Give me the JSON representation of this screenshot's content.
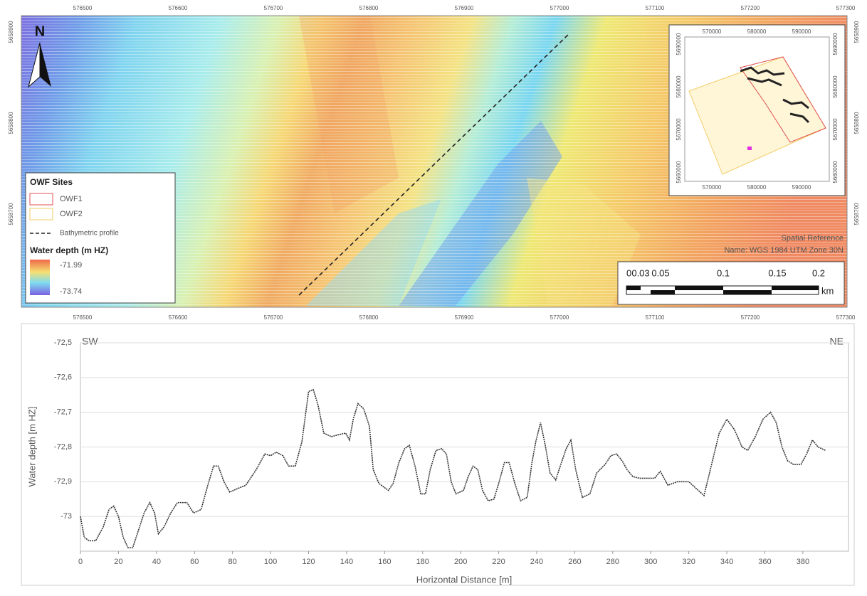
{
  "map": {
    "x_ticks": [
      "576500",
      "576600",
      "576700",
      "576800",
      "576900",
      "577000",
      "577100",
      "577200",
      "577300"
    ],
    "y_ticks": [
      "5658900",
      "5658800",
      "5658700"
    ],
    "north": "N",
    "legend": {
      "title": "OWF Sites",
      "items": [
        "OWF1",
        "OWF2",
        "Bathymetric profile"
      ],
      "depth_title": "Water depth (m HZ)",
      "depth_max": "-71.99",
      "depth_min": "-73.74"
    },
    "spatial_reference": [
      "Spatial Reference",
      "Name: WGS 1984 UTM Zone 30N"
    ],
    "scale_bar": {
      "labels": [
        "0",
        "0.03",
        "0.05",
        "0.1",
        "0.15",
        "0.2"
      ],
      "unit": "km"
    },
    "inset": {
      "x_ticks": [
        "570000",
        "580000",
        "590000"
      ],
      "y_ticks": [
        "5690000",
        "5680000",
        "5670000",
        "5660000"
      ]
    }
  },
  "chart_data": {
    "type": "line",
    "annotations": [
      "SW",
      "NE"
    ],
    "xlabel": "Horizontal Distance [m]",
    "ylabel": "Water depth [m HZ]",
    "color": "#333333",
    "x": [
      0,
      2,
      4.5,
      8,
      12,
      15,
      17.5,
      20,
      22.5,
      25,
      27.5,
      30.5,
      33.5,
      36.5,
      39,
      41,
      44,
      47.5,
      51,
      56,
      59.5,
      63.5,
      67,
      70,
      72.5,
      75.5,
      78.5,
      82.5,
      87,
      92.5,
      97,
      100,
      103,
      106.5,
      109.5,
      113,
      116.5,
      120,
      122.5,
      125,
      128,
      132,
      135.5,
      139.5,
      141.5,
      143.5,
      146,
      149,
      152,
      154,
      157,
      162,
      164.5,
      167.5,
      170.5,
      173,
      176,
      179,
      181.5,
      184,
      187,
      190,
      192.5,
      195,
      197.5,
      201.5,
      204,
      206.5,
      209,
      211.5,
      214.5,
      217.5,
      220,
      223,
      225.5,
      228.5,
      231.5,
      235,
      237.5,
      239.5,
      242,
      244.5,
      247,
      250,
      253,
      255.5,
      258,
      260.5,
      264,
      268,
      271.5,
      276,
      279,
      282,
      285,
      287.5,
      290.5,
      294,
      299,
      302,
      305,
      309,
      314,
      320,
      324,
      328,
      332,
      336,
      340,
      344,
      348,
      351,
      355,
      359,
      363,
      366,
      369,
      372,
      375,
      379,
      382,
      385,
      388,
      392
    ],
    "values": [
      -73.0,
      -73.06,
      -73.07,
      -73.07,
      -73.03,
      -72.98,
      -72.97,
      -73.0,
      -73.06,
      -73.09,
      -73.09,
      -73.04,
      -72.99,
      -72.96,
      -72.99,
      -73.05,
      -73.03,
      -72.99,
      -72.96,
      -72.96,
      -72.99,
      -72.98,
      -72.91,
      -72.855,
      -72.855,
      -72.9,
      -72.93,
      -72.92,
      -72.91,
      -72.865,
      -72.82,
      -72.825,
      -72.815,
      -72.825,
      -72.855,
      -72.855,
      -72.785,
      -72.64,
      -72.635,
      -72.68,
      -72.76,
      -72.77,
      -72.765,
      -72.76,
      -72.78,
      -72.72,
      -72.675,
      -72.69,
      -72.74,
      -72.865,
      -72.905,
      -72.925,
      -72.905,
      -72.845,
      -72.805,
      -72.795,
      -72.855,
      -72.935,
      -72.935,
      -72.865,
      -72.81,
      -72.805,
      -72.82,
      -72.9,
      -72.935,
      -72.925,
      -72.885,
      -72.855,
      -72.865,
      -72.925,
      -72.955,
      -72.95,
      -72.905,
      -72.845,
      -72.845,
      -72.905,
      -72.955,
      -72.945,
      -72.845,
      -72.785,
      -72.73,
      -72.795,
      -72.875,
      -72.895,
      -72.845,
      -72.805,
      -72.78,
      -72.865,
      -72.945,
      -72.935,
      -72.875,
      -72.85,
      -72.825,
      -72.82,
      -72.84,
      -72.865,
      -72.885,
      -72.89,
      -72.89,
      -72.89,
      -72.87,
      -72.91,
      -72.9,
      -72.9,
      -72.92,
      -72.94,
      -72.85,
      -72.76,
      -72.72,
      -72.75,
      -72.8,
      -72.81,
      -72.77,
      -72.72,
      -72.7,
      -72.73,
      -72.8,
      -72.84,
      -72.85,
      -72.85,
      -72.82,
      -72.78,
      -72.8,
      -72.81
    ],
    "xlim": [
      0,
      404
    ],
    "ylim": [
      -73.1,
      -72.5
    ],
    "xticks": [
      0,
      20,
      40,
      60,
      80,
      100,
      120,
      140,
      160,
      180,
      200,
      220,
      240,
      260,
      280,
      300,
      320,
      340,
      360,
      380
    ],
    "yticks": [
      {
        "value": -72.5,
        "label": "-72,5"
      },
      {
        "value": -72.6,
        "label": "-72,6"
      },
      {
        "value": -72.7,
        "label": "-72,7"
      },
      {
        "value": -72.8,
        "label": "-72,8"
      },
      {
        "value": -72.9,
        "label": "-72,9"
      },
      -73
    ],
    "grid": true
  }
}
